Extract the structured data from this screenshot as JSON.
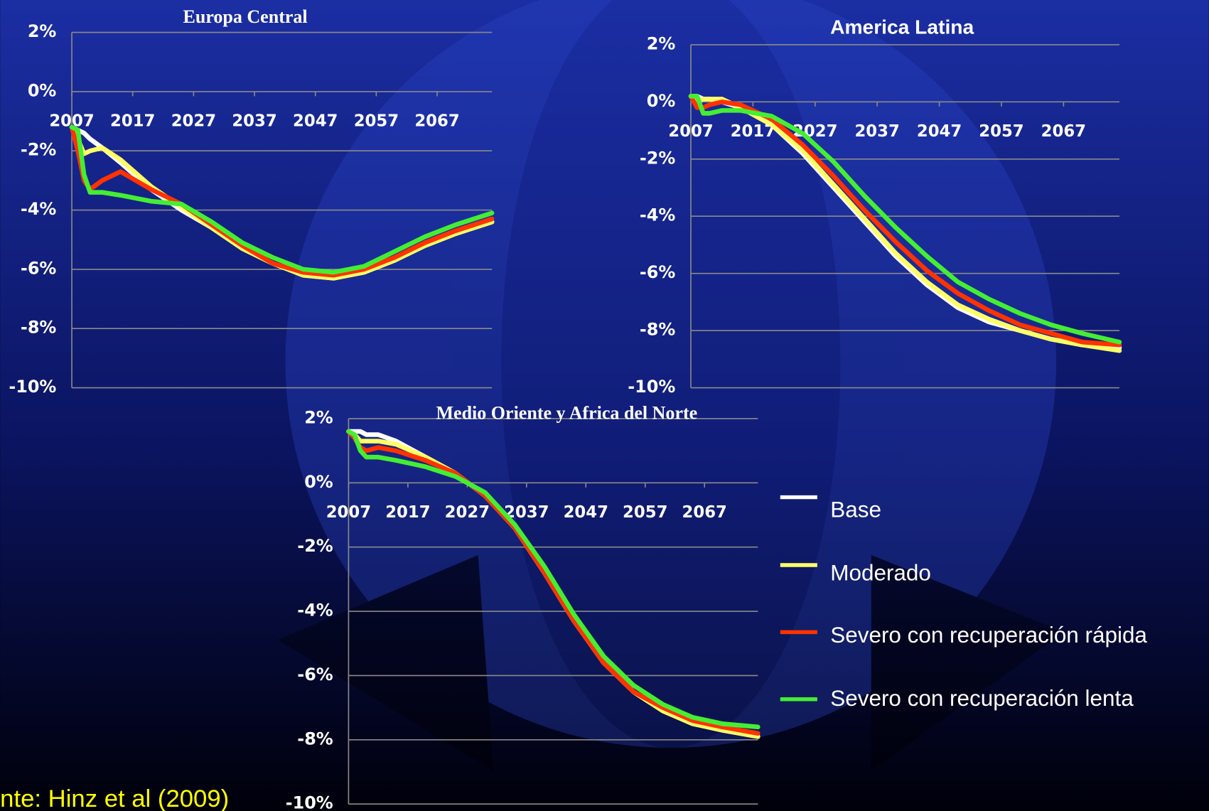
{
  "chart_data": [
    {
      "type": "line",
      "title": "Europa Central",
      "x": [
        2007,
        2008,
        2009,
        2010,
        2012,
        2015,
        2020,
        2025,
        2030,
        2035,
        2040,
        2045,
        2050,
        2055,
        2060,
        2065,
        2070,
        2076
      ],
      "xlim": [
        2007,
        2076
      ],
      "xticks": [
        2007,
        2017,
        2027,
        2037,
        2047,
        2057,
        2067
      ],
      "ylim": [
        -10,
        2
      ],
      "yticks": [
        {
          "value": -10,
          "label": "-10%"
        },
        {
          "value": -8,
          "label": "-8%"
        },
        {
          "value": -6,
          "label": "-6%"
        },
        {
          "value": -4,
          "label": "-4%"
        },
        {
          "value": -2,
          "label": "-2%"
        },
        {
          "value": 0,
          "label": "0%"
        },
        {
          "value": 2,
          "label": "2%"
        }
      ],
      "grid": true,
      "series": [
        {
          "color": "#ffffff",
          "values": [
            -1.2,
            -1.3,
            -1.4,
            -1.6,
            -1.9,
            -2.4,
            -3.3,
            -4.0,
            -4.6,
            -5.3,
            -5.8,
            -6.2,
            -6.3,
            -6.1,
            -5.7,
            -5.2,
            -4.8,
            -4.4
          ]
        },
        {
          "color": "#ffff66",
          "values": [
            -1.2,
            -1.6,
            -2.1,
            -2.0,
            -1.9,
            -2.3,
            -3.2,
            -3.9,
            -4.6,
            -5.3,
            -5.8,
            -6.2,
            -6.3,
            -6.1,
            -5.7,
            -5.2,
            -4.8,
            -4.4
          ]
        },
        {
          "color": "#ff3300",
          "values": [
            -1.2,
            -2.0,
            -3.0,
            -3.3,
            -3.0,
            -2.7,
            -3.3,
            -3.8,
            -4.5,
            -5.2,
            -5.8,
            -6.1,
            -6.2,
            -6.0,
            -5.6,
            -5.1,
            -4.7,
            -4.3
          ]
        },
        {
          "color": "#44ee33",
          "values": [
            -1.2,
            -1.3,
            -2.8,
            -3.4,
            -3.4,
            -3.5,
            -3.7,
            -3.8,
            -4.4,
            -5.1,
            -5.6,
            -6.0,
            -6.1,
            -5.9,
            -5.4,
            -4.9,
            -4.5,
            -4.1
          ]
        }
      ]
    },
    {
      "type": "line",
      "title": "America Latina",
      "x": [
        2007,
        2008,
        2009,
        2010,
        2012,
        2015,
        2020,
        2025,
        2030,
        2035,
        2040,
        2045,
        2050,
        2055,
        2060,
        2065,
        2070,
        2076
      ],
      "xlim": [
        2007,
        2076
      ],
      "xticks": [
        2007,
        2017,
        2027,
        2037,
        2047,
        2057,
        2067
      ],
      "ylim": [
        -10,
        2
      ],
      "yticks": [
        {
          "value": -10,
          "label": "-10%"
        },
        {
          "value": -8,
          "label": "-8%"
        },
        {
          "value": -6,
          "label": "-6%"
        },
        {
          "value": -4,
          "label": "-4%"
        },
        {
          "value": -2,
          "label": "-2%"
        },
        {
          "value": 0,
          "label": "0%"
        },
        {
          "value": 2,
          "label": "2%"
        }
      ],
      "grid": true,
      "series": [
        {
          "color": "#ffffff",
          "values": [
            0.2,
            0.2,
            0.1,
            0.1,
            0.0,
            -0.2,
            -0.8,
            -1.8,
            -3.0,
            -4.2,
            -5.4,
            -6.4,
            -7.2,
            -7.7,
            -8.0,
            -8.3,
            -8.5,
            -8.6
          ]
        },
        {
          "color": "#ffff66",
          "values": [
            0.2,
            0.0,
            0.1,
            0.1,
            0.1,
            -0.2,
            -0.8,
            -1.7,
            -2.9,
            -4.1,
            -5.3,
            -6.3,
            -7.1,
            -7.6,
            -8.0,
            -8.3,
            -8.5,
            -8.7
          ]
        },
        {
          "color": "#ff3300",
          "values": [
            0.2,
            -0.2,
            -0.2,
            -0.1,
            0.0,
            -0.1,
            -0.6,
            -1.5,
            -2.6,
            -3.8,
            -4.9,
            -5.9,
            -6.7,
            -7.3,
            -7.8,
            -8.1,
            -8.4,
            -8.5
          ]
        },
        {
          "color": "#44ee33",
          "values": [
            0.2,
            0.2,
            -0.4,
            -0.4,
            -0.3,
            -0.3,
            -0.5,
            -1.1,
            -2.1,
            -3.3,
            -4.4,
            -5.4,
            -6.3,
            -6.9,
            -7.4,
            -7.8,
            -8.1,
            -8.4
          ]
        }
      ]
    },
    {
      "type": "line",
      "title": "Medio Oriente y Africa del Norte",
      "x": [
        2007,
        2008,
        2009,
        2010,
        2012,
        2015,
        2020,
        2025,
        2030,
        2035,
        2040,
        2045,
        2050,
        2055,
        2060,
        2065,
        2070,
        2076
      ],
      "xlim": [
        2007,
        2076
      ],
      "xticks": [
        2007,
        2017,
        2027,
        2037,
        2047,
        2057,
        2067
      ],
      "ylim": [
        -10,
        2
      ],
      "yticks": [
        {
          "value": -10,
          "label": "-10%"
        },
        {
          "value": -8,
          "label": "-8%"
        },
        {
          "value": -6,
          "label": "-6%"
        },
        {
          "value": -4,
          "label": "-4%"
        },
        {
          "value": -2,
          "label": "-2%"
        },
        {
          "value": 0,
          "label": "0%"
        },
        {
          "value": 2,
          "label": "2%"
        }
      ],
      "grid": true,
      "series": [
        {
          "name": "Base",
          "color": "#ffffff",
          "values": [
            1.6,
            1.6,
            1.6,
            1.5,
            1.5,
            1.3,
            0.8,
            0.3,
            -0.4,
            -1.4,
            -2.8,
            -4.3,
            -5.6,
            -6.5,
            -7.1,
            -7.5,
            -7.7,
            -7.9
          ]
        },
        {
          "name": "Moderado",
          "color": "#ffff66",
          "values": [
            1.6,
            1.5,
            1.3,
            1.3,
            1.3,
            1.2,
            0.8,
            0.3,
            -0.4,
            -1.4,
            -2.8,
            -4.3,
            -5.6,
            -6.5,
            -7.1,
            -7.5,
            -7.7,
            -7.9
          ]
        },
        {
          "name": "Severo con recuperación rápida",
          "color": "#ff3300",
          "values": [
            1.6,
            1.4,
            1.1,
            1.0,
            1.1,
            1.0,
            0.7,
            0.3,
            -0.4,
            -1.4,
            -2.8,
            -4.3,
            -5.6,
            -6.5,
            -7.0,
            -7.4,
            -7.6,
            -7.8
          ]
        },
        {
          "name": "Severo con recuperación lenta",
          "color": "#44ee33",
          "values": [
            1.6,
            1.5,
            1.0,
            0.8,
            0.8,
            0.7,
            0.5,
            0.2,
            -0.3,
            -1.3,
            -2.6,
            -4.1,
            -5.4,
            -6.3,
            -6.9,
            -7.3,
            -7.5,
            -7.6
          ]
        }
      ]
    }
  ],
  "footer": {
    "source": "nte: Hinz et al (2009)"
  }
}
